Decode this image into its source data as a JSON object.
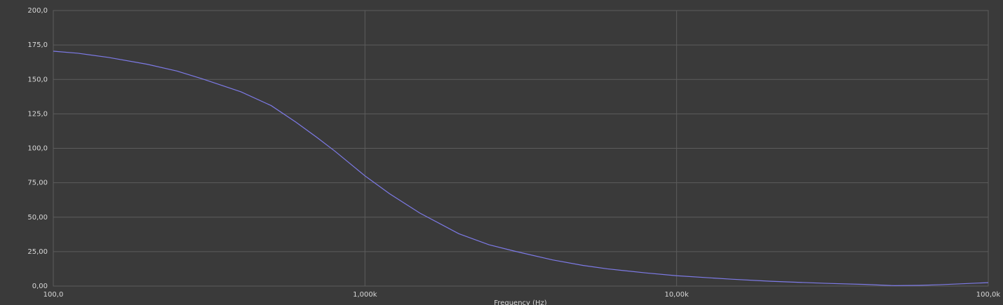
{
  "chart_data": {
    "type": "line",
    "x_label": "Frequency (Hz)",
    "log_x": true,
    "grid": true,
    "xlim": [
      100,
      100000
    ],
    "xticks": [
      {
        "value": 100,
        "label": "100,0"
      },
      {
        "value": 1000,
        "label": "1,000k"
      },
      {
        "value": 10000,
        "label": "10,00k"
      },
      {
        "value": 100000,
        "label": "100,0k"
      }
    ],
    "ylim": [
      0,
      200
    ],
    "yticks": [
      {
        "value": 0,
        "label": "0,00"
      },
      {
        "value": 25,
        "label": "25,00"
      },
      {
        "value": 50,
        "label": "50,00"
      },
      {
        "value": 75,
        "label": "75,00"
      },
      {
        "value": 100,
        "label": "100,0"
      },
      {
        "value": 125,
        "label": "125,0"
      },
      {
        "value": 150,
        "label": "150,0"
      },
      {
        "value": 175,
        "label": "175,0"
      },
      {
        "value": 200,
        "label": "200,0"
      }
    ],
    "x": [
      100,
      120,
      150,
      200,
      250,
      300,
      400,
      500,
      600,
      700,
      800,
      1000,
      1200,
      1500,
      2000,
      2500,
      3000,
      4000,
      5000,
      6000,
      8000,
      10000,
      15000,
      20000,
      30000,
      40000,
      50000,
      60000,
      70000,
      100000
    ],
    "series": [
      {
        "color": "#7d7ae6",
        "values": [
          170.5,
          169,
          166,
          161,
          156,
          150.5,
          141,
          131,
          119,
          108,
          98,
          80,
          67,
          53,
          38,
          30,
          25.5,
          19,
          15,
          12.5,
          9.5,
          7.5,
          5,
          3.5,
          2,
          1.2,
          0.3,
          0.5,
          1,
          2.5
        ]
      }
    ]
  }
}
